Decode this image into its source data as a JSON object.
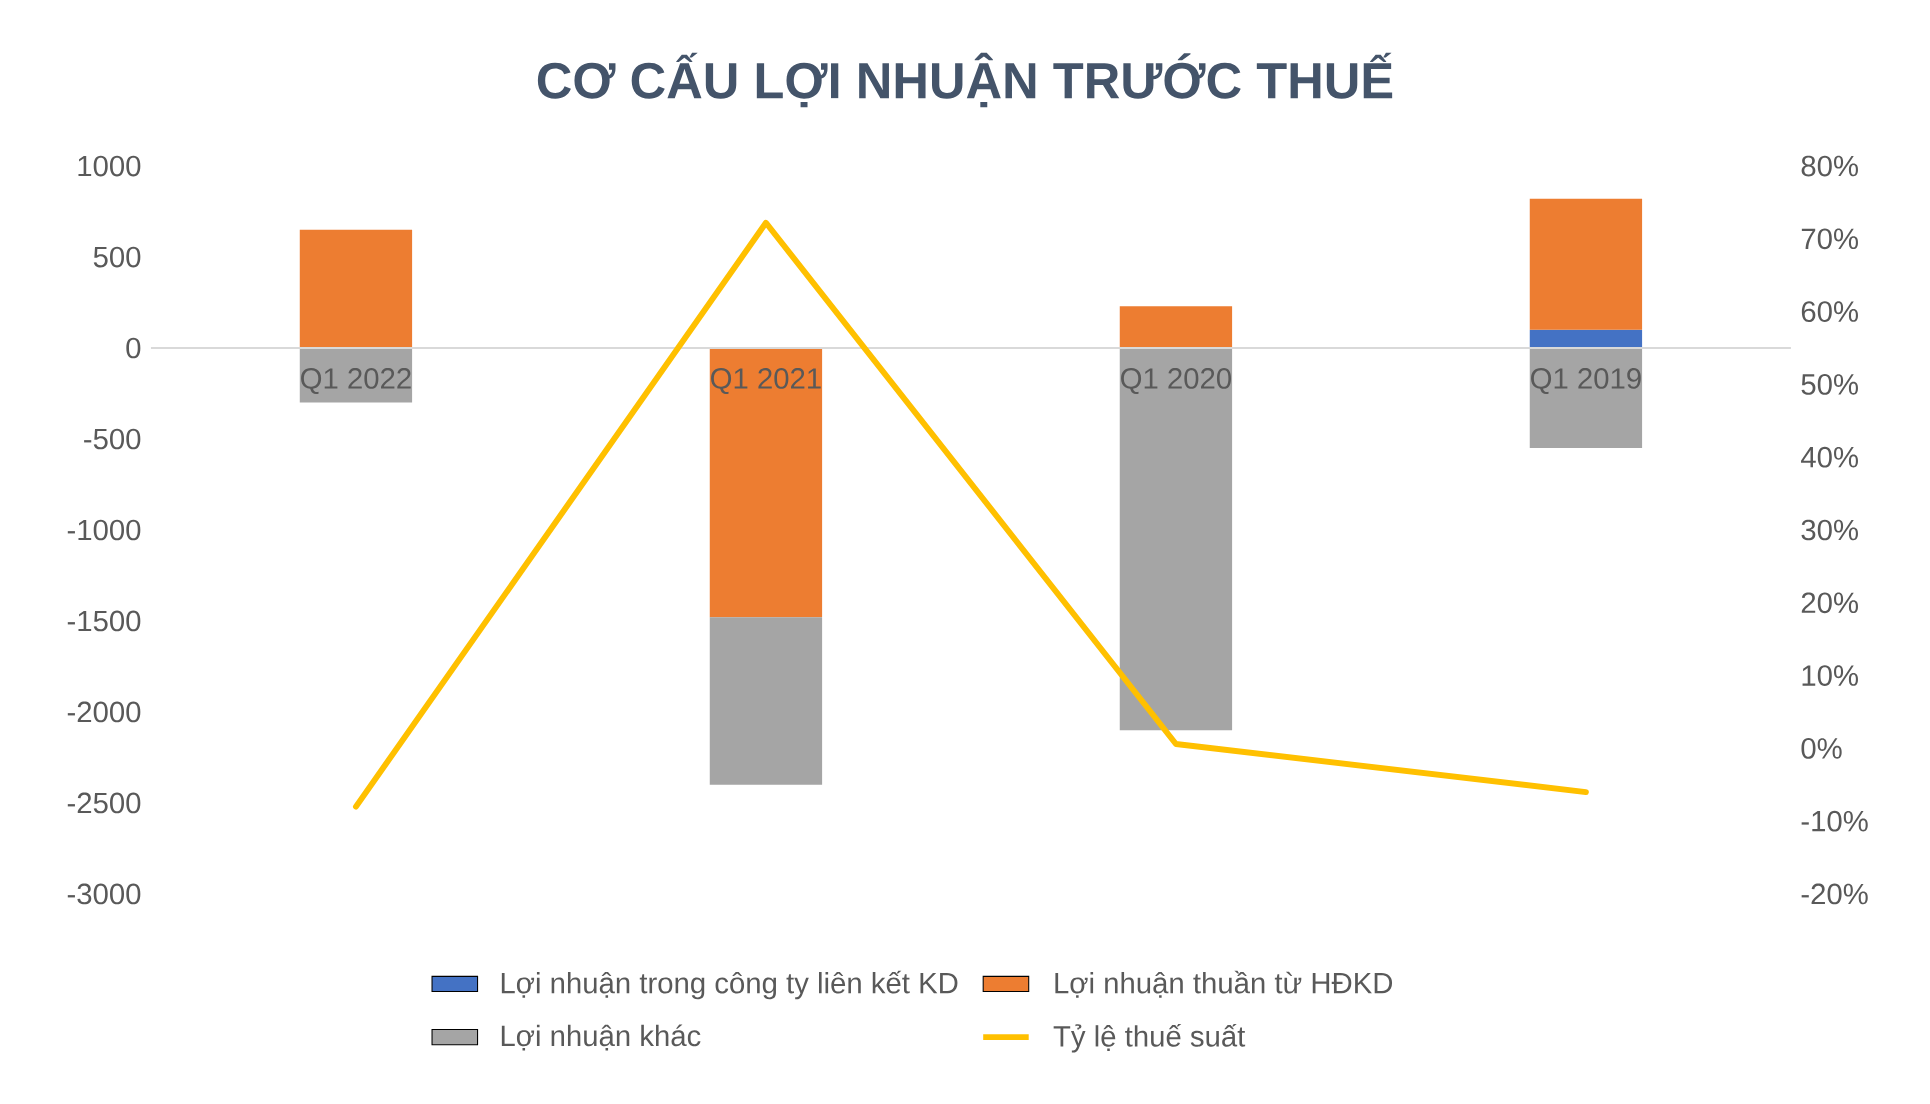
{
  "chart_data": {
    "type": "bar",
    "title": "CƠ CẤU LỢI NHUẬN TRƯỚC THUẾ",
    "categories": [
      "Q1 2022",
      "Q1 2021",
      "Q1 2020",
      "Q1 2019"
    ],
    "stacked": true,
    "legend": "bottom",
    "marker": "none",
    "ylim": [
      -3000,
      1000
    ],
    "yticks": [
      -3000,
      -2500,
      -2000,
      -1500,
      -1000,
      -500,
      0,
      500,
      1000
    ],
    "y2lim": [
      -20,
      80
    ],
    "y2ticks": [
      {
        "value": -20,
        "label": "-20%"
      },
      {
        "value": -10,
        "label": "-10%"
      },
      {
        "value": 0,
        "label": "0%"
      },
      {
        "value": 10,
        "label": "10%"
      },
      {
        "value": 20,
        "label": "20%"
      },
      {
        "value": 30,
        "label": "30%"
      },
      {
        "value": 40,
        "label": "40%"
      },
      {
        "value": 50,
        "label": "50%"
      },
      {
        "value": 60,
        "label": "60%"
      },
      {
        "value": 70,
        "label": "70%"
      },
      {
        "value": 80,
        "label": "80%"
      }
    ],
    "series": [
      {
        "name": "Lợi nhuận trong công ty liên kết KD",
        "color": "#4472c4",
        "values": [
          0,
          0,
          0,
          100
        ]
      },
      {
        "name": "Lợi nhuận thuần từ HĐKD",
        "color": "#ed7d31",
        "values": [
          650,
          -1480,
          230,
          720
        ]
      },
      {
        "name": "Lợi nhuận khác",
        "color": "#a5a5a5",
        "values": [
          -300,
          -920,
          -2100,
          -550
        ]
      },
      {
        "name": "Tỷ lệ thuế suất",
        "color": "#ffc000",
        "type": "line",
        "axis": "y2",
        "values": [
          -8.0,
          72.2,
          0.6,
          -6.0
        ]
      }
    ]
  }
}
